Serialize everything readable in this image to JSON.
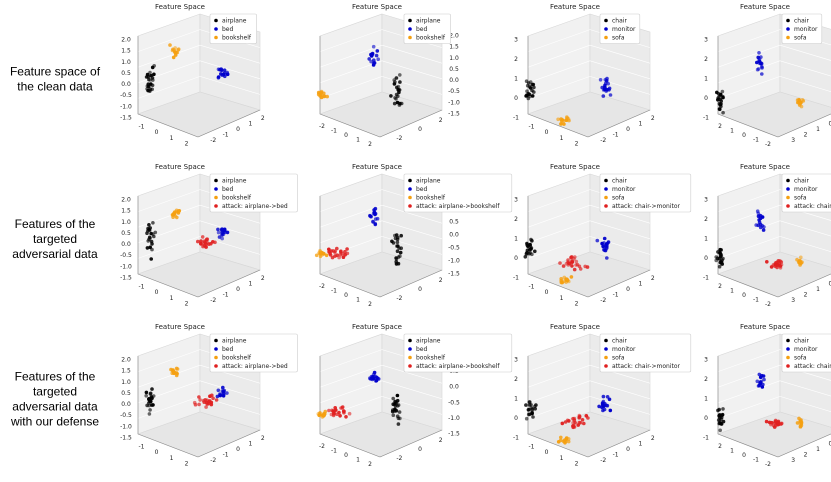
{
  "row_labels": [
    [
      "Feature space of",
      "the clean data"
    ],
    [
      "Features of the",
      "targeted",
      "adversarial data"
    ],
    [
      "Features of the",
      "targeted",
      "adversarial data",
      "with our defense"
    ]
  ],
  "panels": [
    {
      "title": "Feature Space",
      "legend": [
        {
          "label": "airplane",
          "color": "#000000"
        },
        {
          "label": "bed",
          "color": "#0000cc"
        },
        {
          "label": "bookshelf",
          "color": "#f5a011"
        }
      ],
      "z_ticks": [
        "2.0",
        "1.5",
        "1.0",
        "0.5",
        "0.0",
        "-0.5",
        "-1.0",
        "-1.5"
      ],
      "x_ticks": [
        "-1",
        "0",
        "1",
        "2"
      ],
      "y_ticks": [
        "-2",
        "-1",
        "0",
        "1",
        "2"
      ]
    },
    {
      "title": "Feature Space",
      "legend": [
        {
          "label": "airplane",
          "color": "#000000"
        },
        {
          "label": "bed",
          "color": "#0000cc"
        },
        {
          "label": "bookshelf",
          "color": "#f5a011"
        }
      ],
      "z_ticks": [
        "2.0",
        "1.5",
        "1.0",
        "0.5",
        "0.0",
        "-0.5",
        "-1.0",
        "-1.5"
      ],
      "x_ticks": [
        "-2",
        "-1",
        "0",
        "1",
        "2"
      ],
      "y_ticks": [
        "-2",
        "0",
        "2"
      ]
    },
    {
      "title": "Feature Space",
      "legend": [
        {
          "label": "chair",
          "color": "#000000"
        },
        {
          "label": "monitor",
          "color": "#0000cc"
        },
        {
          "label": "sofa",
          "color": "#f5a011"
        }
      ],
      "z_ticks": [
        "3",
        "2",
        "1",
        "0",
        "-1"
      ],
      "x_ticks": [
        "-1",
        "0",
        "1",
        "2"
      ],
      "y_ticks": [
        "-2",
        "-1",
        "0",
        "1",
        "2"
      ]
    },
    {
      "title": "Feature Space",
      "legend": [
        {
          "label": "chair",
          "color": "#000000"
        },
        {
          "label": "monitor",
          "color": "#0000cc"
        },
        {
          "label": "sofa",
          "color": "#f5a011"
        }
      ],
      "z_ticks": [
        "3",
        "2",
        "1",
        "0",
        "-1"
      ],
      "x_ticks": [
        "2",
        "1",
        "0",
        "-1",
        "-2"
      ],
      "y_ticks": [
        "3",
        "2",
        "1",
        "0",
        "-1"
      ]
    },
    {
      "title": "Feature Space",
      "legend": [
        {
          "label": "airplane",
          "color": "#000000"
        },
        {
          "label": "bed",
          "color": "#0000cc"
        },
        {
          "label": "bookshelf",
          "color": "#f5a011"
        },
        {
          "label": "attack: airplane->bed",
          "color": "#e02020"
        }
      ],
      "z_ticks": [
        "2.0",
        "1.5",
        "1.0",
        "0.5",
        "0.0",
        "-0.5",
        "-1.0",
        "-1.5"
      ],
      "x_ticks": [
        "-1",
        "0",
        "1",
        "2"
      ],
      "y_ticks": [
        "-2",
        "-1",
        "0",
        "1",
        "2"
      ]
    },
    {
      "title": "Feature Space",
      "legend": [
        {
          "label": "airplane",
          "color": "#000000"
        },
        {
          "label": "bed",
          "color": "#0000cc"
        },
        {
          "label": "bookshelf",
          "color": "#f5a011"
        },
        {
          "label": "attack: airplane->bookshelf",
          "color": "#e02020"
        }
      ],
      "z_ticks": [
        "1.5",
        "1.0",
        "0.5",
        "0.0",
        "-0.5",
        "-1.0",
        "-1.5"
      ],
      "x_ticks": [
        "-2",
        "-1",
        "0",
        "1",
        "2"
      ],
      "y_ticks": [
        "-2",
        "0",
        "2"
      ]
    },
    {
      "title": "Feature Space",
      "legend": [
        {
          "label": "chair",
          "color": "#000000"
        },
        {
          "label": "monitor",
          "color": "#0000cc"
        },
        {
          "label": "sofa",
          "color": "#f5a011"
        },
        {
          "label": "attack: chair->monitor",
          "color": "#e02020"
        }
      ],
      "z_ticks": [
        "3",
        "2",
        "1",
        "0",
        "-1"
      ],
      "x_ticks": [
        "-1",
        "0",
        "1",
        "2"
      ],
      "y_ticks": [
        "-2",
        "-1",
        "0",
        "1",
        "2"
      ]
    },
    {
      "title": "Feature Space",
      "legend": [
        {
          "label": "chair",
          "color": "#000000"
        },
        {
          "label": "monitor",
          "color": "#0000cc"
        },
        {
          "label": "sofa",
          "color": "#f5a011"
        },
        {
          "label": "attack: chair->sofa",
          "color": "#e02020"
        }
      ],
      "z_ticks": [
        "3",
        "2",
        "1",
        "0",
        "-1"
      ],
      "x_ticks": [
        "2",
        "1",
        "0",
        "-1",
        "-2"
      ],
      "y_ticks": [
        "3",
        "2",
        "1",
        "0",
        "-1"
      ]
    },
    {
      "title": "Feature Space",
      "legend": [
        {
          "label": "airplane",
          "color": "#000000"
        },
        {
          "label": "bed",
          "color": "#0000cc"
        },
        {
          "label": "bookshelf",
          "color": "#f5a011"
        },
        {
          "label": "attack: airplane->bed",
          "color": "#e02020"
        }
      ],
      "z_ticks": [
        "2.0",
        "1.5",
        "1.0",
        "0.5",
        "0.0",
        "-0.5",
        "-1.0",
        "-1.5"
      ],
      "x_ticks": [
        "-1",
        "0",
        "1",
        "2"
      ],
      "y_ticks": [
        "-2",
        "-1",
        "0",
        "1",
        "2"
      ]
    },
    {
      "title": "Feature Space",
      "legend": [
        {
          "label": "airplane",
          "color": "#000000"
        },
        {
          "label": "bed",
          "color": "#0000cc"
        },
        {
          "label": "bookshelf",
          "color": "#f5a011"
        },
        {
          "label": "attack: airplane->bookshelf",
          "color": "#e02020"
        }
      ],
      "z_ticks": [
        "1.0",
        "0.5",
        "0.0",
        "-0.5",
        "-1.0",
        "-1.5"
      ],
      "x_ticks": [
        "-2",
        "-1",
        "0",
        "1",
        "2"
      ],
      "y_ticks": [
        "-2",
        "0",
        "2"
      ]
    },
    {
      "title": "Feature Space",
      "legend": [
        {
          "label": "chair",
          "color": "#000000"
        },
        {
          "label": "monitor",
          "color": "#0000cc"
        },
        {
          "label": "sofa",
          "color": "#f5a011"
        },
        {
          "label": "attack: chair->monitor",
          "color": "#e02020"
        }
      ],
      "z_ticks": [
        "3",
        "2",
        "1",
        "0",
        "-1"
      ],
      "x_ticks": [
        "-1",
        "0",
        "1",
        "2"
      ],
      "y_ticks": [
        "-2",
        "-1",
        "0",
        "1",
        "2"
      ]
    },
    {
      "title": "Feature Space",
      "legend": [
        {
          "label": "chair",
          "color": "#000000"
        },
        {
          "label": "monitor",
          "color": "#0000cc"
        },
        {
          "label": "sofa",
          "color": "#f5a011"
        },
        {
          "label": "attack: chair->sofa",
          "color": "#e02020"
        }
      ],
      "z_ticks": [
        "3",
        "2",
        "1",
        "0",
        "-1"
      ],
      "x_ticks": [
        "2",
        "1",
        "0",
        "-1",
        "-2"
      ],
      "y_ticks": [
        "3",
        "2",
        "1",
        "0",
        "-1"
      ]
    }
  ]
}
